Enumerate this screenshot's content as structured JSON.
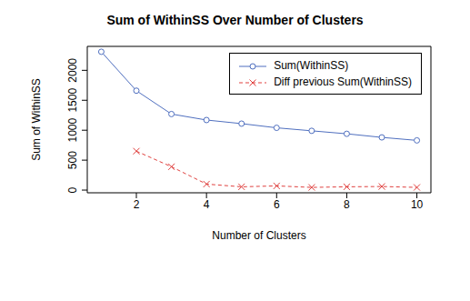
{
  "chart_data": {
    "type": "line",
    "title": "Sum of WithinSS Over Number of Clusters",
    "x_label": "Number of Clusters",
    "y_label": "Sum of WithinSS",
    "x": [
      1,
      2,
      3,
      4,
      5,
      6,
      7,
      8,
      9,
      10
    ],
    "series": [
      {
        "name": "Sum(WithinSS)",
        "color": "#4f6fbf",
        "marker": "circle",
        "line_style": "solid",
        "values": [
          2310,
          1660,
          1270,
          1170,
          1110,
          1040,
          990,
          940,
          880,
          830
        ]
      },
      {
        "name": "Diff previous Sum(WithinSS)",
        "color": "#e0413f",
        "marker": "x",
        "line_style": "dashed",
        "values": [
          null,
          650,
          390,
          100,
          55,
          70,
          45,
          55,
          60,
          45
        ]
      }
    ],
    "xlim": [
      0.6,
      10.4
    ],
    "ylim": [
      -45,
      2400
    ],
    "xticks": [
      2,
      4,
      6,
      8,
      10
    ],
    "yticks": [
      0,
      500,
      1000,
      1500,
      2000
    ],
    "grid": false,
    "legend": "upper right"
  }
}
